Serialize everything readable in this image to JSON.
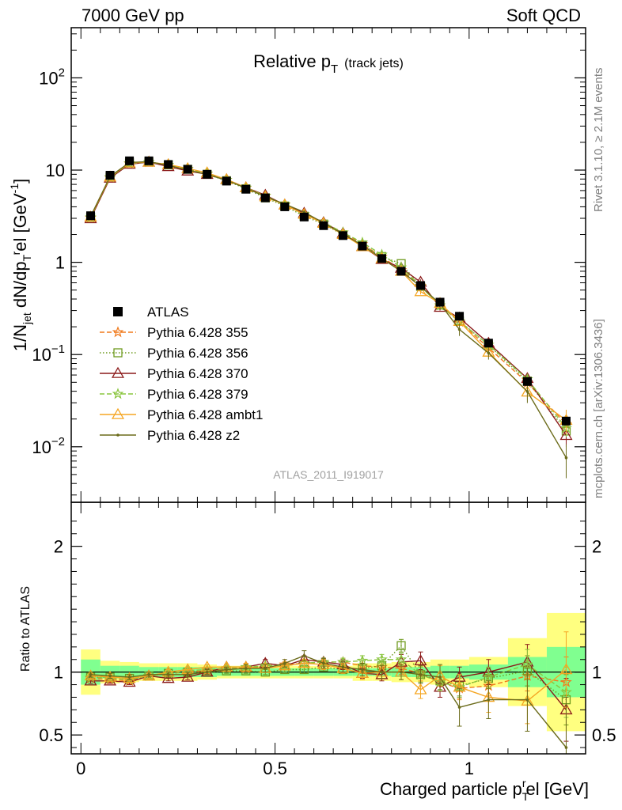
{
  "header": {
    "left": "7000 GeV pp",
    "right": "Soft QCD"
  },
  "side_labels": {
    "rivet": "Rivet 3.1.10, ≥ 2.1M events",
    "source": "mcplots.cern.ch [arXiv:1306.3436]"
  },
  "chart_data": [
    {
      "type": "line",
      "title_main": "Relative p",
      "title_sub": "T",
      "title_note": "(track jets)",
      "analysis_label": "ATLAS_2011_I919017",
      "ylabel": "1/N",
      "ylabel_sub1": "jet",
      "ylabel_mid": " dN/dp",
      "ylabel_sub2": "T",
      "ylabel_sup2": "r",
      "ylabel_tail": "el [GeV",
      "ylabel_sup3": "-1",
      "ylabel_close": "]",
      "yscale": "log",
      "ylim": [
        0.0025,
        350
      ],
      "xlim": [
        -0.025,
        1.3
      ],
      "y_ticks": [
        {
          "value": 100,
          "base": "10",
          "exp": "2"
        },
        {
          "value": 10,
          "base": "10",
          "exp": ""
        },
        {
          "value": 1,
          "base": "1",
          "exp": ""
        },
        {
          "value": 0.1,
          "base": "10",
          "exp": "−1"
        },
        {
          "value": 0.01,
          "base": "10",
          "exp": "−2"
        }
      ],
      "x": [
        0.025,
        0.075,
        0.125,
        0.175,
        0.225,
        0.275,
        0.325,
        0.375,
        0.425,
        0.475,
        0.525,
        0.575,
        0.625,
        0.675,
        0.725,
        0.775,
        0.825,
        0.875,
        0.925,
        0.975,
        1.05,
        1.15,
        1.25
      ],
      "atlas": [
        3.2,
        8.8,
        12.6,
        12.6,
        11.5,
        10.2,
        9.0,
        7.6,
        6.2,
        5.0,
        4.0,
        3.1,
        2.5,
        1.95,
        1.5,
        1.1,
        0.8,
        0.56,
        0.37,
        0.26,
        0.133,
        0.051,
        0.019
      ],
      "legend": [
        {
          "name": "ATLAS",
          "color": "#000000",
          "marker": "square-filled",
          "dash": ""
        },
        {
          "name": "Pythia 6.428 355",
          "color": "#f07a1d",
          "marker": "star",
          "dash": "6,3"
        },
        {
          "name": "Pythia 6.428 356",
          "color": "#6e9a1e",
          "marker": "square-open",
          "dash": "1.5,2.5"
        },
        {
          "name": "Pythia 6.428 370",
          "color": "#8b1a1a",
          "marker": "triangle-open",
          "dash": ""
        },
        {
          "name": "Pythia 6.428 379",
          "color": "#8ac53e",
          "marker": "star",
          "dash": "6,3"
        },
        {
          "name": "Pythia 6.428 ambt1",
          "color": "#f5a623",
          "marker": "triangle-open",
          "dash": ""
        },
        {
          "name": "Pythia 6.428 z2",
          "color": "#6b6b1a",
          "marker": "dot",
          "dash": ""
        }
      ]
    },
    {
      "type": "line",
      "ylabel": "Ratio to ATLAS",
      "xlabel_main": "Charged particle p",
      "xlabel_sub": "T",
      "xlabel_sup": "r",
      "xlabel_tail": "el [GeV]",
      "ylim": [
        0.35,
        2.35
      ],
      "xlim": [
        -0.025,
        1.3
      ],
      "y_ticks": [
        0.5,
        1,
        2
      ],
      "x_ticks": [
        0,
        0.5,
        1
      ],
      "x_tick_labels": [
        "0",
        "0.5",
        "1"
      ],
      "x_edges": [
        0,
        0.05,
        0.1,
        0.15,
        0.2,
        0.25,
        0.3,
        0.35,
        0.4,
        0.45,
        0.5,
        0.55,
        0.6,
        0.65,
        0.7,
        0.75,
        0.8,
        0.85,
        0.9,
        0.95,
        1.0,
        1.1,
        1.2,
        1.3
      ],
      "band_green": [
        0.1,
        0.05,
        0.05,
        0.04,
        0.04,
        0.04,
        0.04,
        0.03,
        0.03,
        0.03,
        0.03,
        0.03,
        0.03,
        0.03,
        0.03,
        0.03,
        0.04,
        0.04,
        0.05,
        0.05,
        0.06,
        0.12,
        0.2
      ],
      "band_yellow": [
        0.18,
        0.09,
        0.08,
        0.07,
        0.07,
        0.07,
        0.06,
        0.05,
        0.05,
        0.05,
        0.05,
        0.05,
        0.05,
        0.05,
        0.07,
        0.07,
        0.08,
        0.08,
        0.1,
        0.1,
        0.12,
        0.27,
        0.47
      ],
      "x": [
        0.025,
        0.075,
        0.125,
        0.175,
        0.225,
        0.275,
        0.325,
        0.375,
        0.425,
        0.475,
        0.525,
        0.575,
        0.625,
        0.675,
        0.725,
        0.775,
        0.825,
        0.875,
        0.925,
        0.975,
        1.05,
        1.15,
        1.25
      ],
      "series": [
        {
          "name": "Pythia 6.428 355",
          "values": [
            0.95,
            0.94,
            0.93,
            0.97,
            0.99,
            1.0,
            1.01,
            1.03,
            1.03,
            1.05,
            1.06,
            1.07,
            1.08,
            1.08,
            1.05,
            1.04,
            1.03,
            0.99,
            0.92,
            0.87,
            0.89,
            0.97,
            0.92
          ],
          "err": [
            0.02,
            0.02,
            0.02,
            0.02,
            0.02,
            0.02,
            0.02,
            0.02,
            0.02,
            0.02,
            0.02,
            0.03,
            0.03,
            0.03,
            0.04,
            0.04,
            0.05,
            0.06,
            0.07,
            0.08,
            0.08,
            0.12,
            0.2
          ]
        },
        {
          "name": "Pythia 6.428 356",
          "values": [
            0.96,
            0.96,
            0.95,
            0.97,
            0.99,
            1.0,
            1.0,
            1.01,
            1.01,
            1.0,
            1.02,
            1.02,
            1.04,
            1.02,
            1.03,
            1.05,
            1.21,
            0.98,
            0.93,
            0.89,
            0.95,
            1.01,
            0.78
          ],
          "err": [
            0.02,
            0.02,
            0.02,
            0.02,
            0.02,
            0.02,
            0.02,
            0.02,
            0.02,
            0.02,
            0.02,
            0.03,
            0.03,
            0.03,
            0.04,
            0.04,
            0.05,
            0.06,
            0.07,
            0.08,
            0.08,
            0.12,
            0.2
          ]
        },
        {
          "name": "Pythia 6.428 370",
          "values": [
            0.93,
            0.93,
            0.92,
            0.97,
            0.95,
            0.96,
            1.0,
            1.04,
            1.04,
            1.07,
            1.05,
            1.1,
            1.08,
            1.06,
            0.99,
            0.98,
            1.08,
            1.09,
            0.88,
            0.96,
            1.0,
            1.08,
            0.7
          ],
          "err": [
            0.02,
            0.02,
            0.02,
            0.02,
            0.02,
            0.02,
            0.02,
            0.02,
            0.03,
            0.03,
            0.03,
            0.03,
            0.03,
            0.04,
            0.04,
            0.05,
            0.06,
            0.07,
            0.08,
            0.08,
            0.1,
            0.14,
            0.25
          ]
        },
        {
          "name": "Pythia 6.428 379",
          "values": [
            0.96,
            0.95,
            0.94,
            0.97,
            0.99,
            1.01,
            1.02,
            1.03,
            1.04,
            1.05,
            1.05,
            1.07,
            1.08,
            1.08,
            1.09,
            1.1,
            1.1,
            0.98,
            0.92,
            0.88,
            0.96,
            1.06,
            0.84
          ],
          "err": [
            0.02,
            0.02,
            0.02,
            0.02,
            0.02,
            0.02,
            0.02,
            0.02,
            0.02,
            0.02,
            0.02,
            0.03,
            0.03,
            0.03,
            0.04,
            0.04,
            0.05,
            0.06,
            0.07,
            0.08,
            0.08,
            0.12,
            0.2
          ]
        },
        {
          "name": "Pythia 6.428 ambt1",
          "values": [
            0.97,
            0.96,
            0.95,
            0.97,
            1.0,
            1.02,
            1.04,
            1.04,
            1.04,
            1.03,
            1.05,
            1.07,
            1.06,
            1.03,
            0.99,
            1.0,
            1.0,
            0.86,
            0.97,
            0.88,
            0.8,
            0.77,
            1.02
          ],
          "err": [
            0.02,
            0.02,
            0.02,
            0.02,
            0.02,
            0.02,
            0.02,
            0.02,
            0.03,
            0.03,
            0.03,
            0.03,
            0.04,
            0.04,
            0.05,
            0.05,
            0.06,
            0.07,
            0.08,
            0.1,
            0.12,
            0.18,
            0.3
          ]
        },
        {
          "name": "Pythia 6.428 z2",
          "values": [
            0.98,
            0.97,
            0.96,
            0.98,
            0.98,
            0.98,
            1.0,
            1.02,
            1.03,
            1.03,
            1.07,
            1.13,
            1.07,
            1.04,
            1.02,
            1.0,
            1.0,
            0.98,
            0.96,
            0.72,
            0.78,
            0.78,
            0.4
          ],
          "err": [
            0.02,
            0.02,
            0.02,
            0.02,
            0.02,
            0.02,
            0.02,
            0.02,
            0.03,
            0.03,
            0.03,
            0.04,
            0.04,
            0.04,
            0.05,
            0.05,
            0.06,
            0.07,
            0.1,
            0.15,
            0.15,
            0.25,
            0.4
          ]
        }
      ]
    }
  ]
}
